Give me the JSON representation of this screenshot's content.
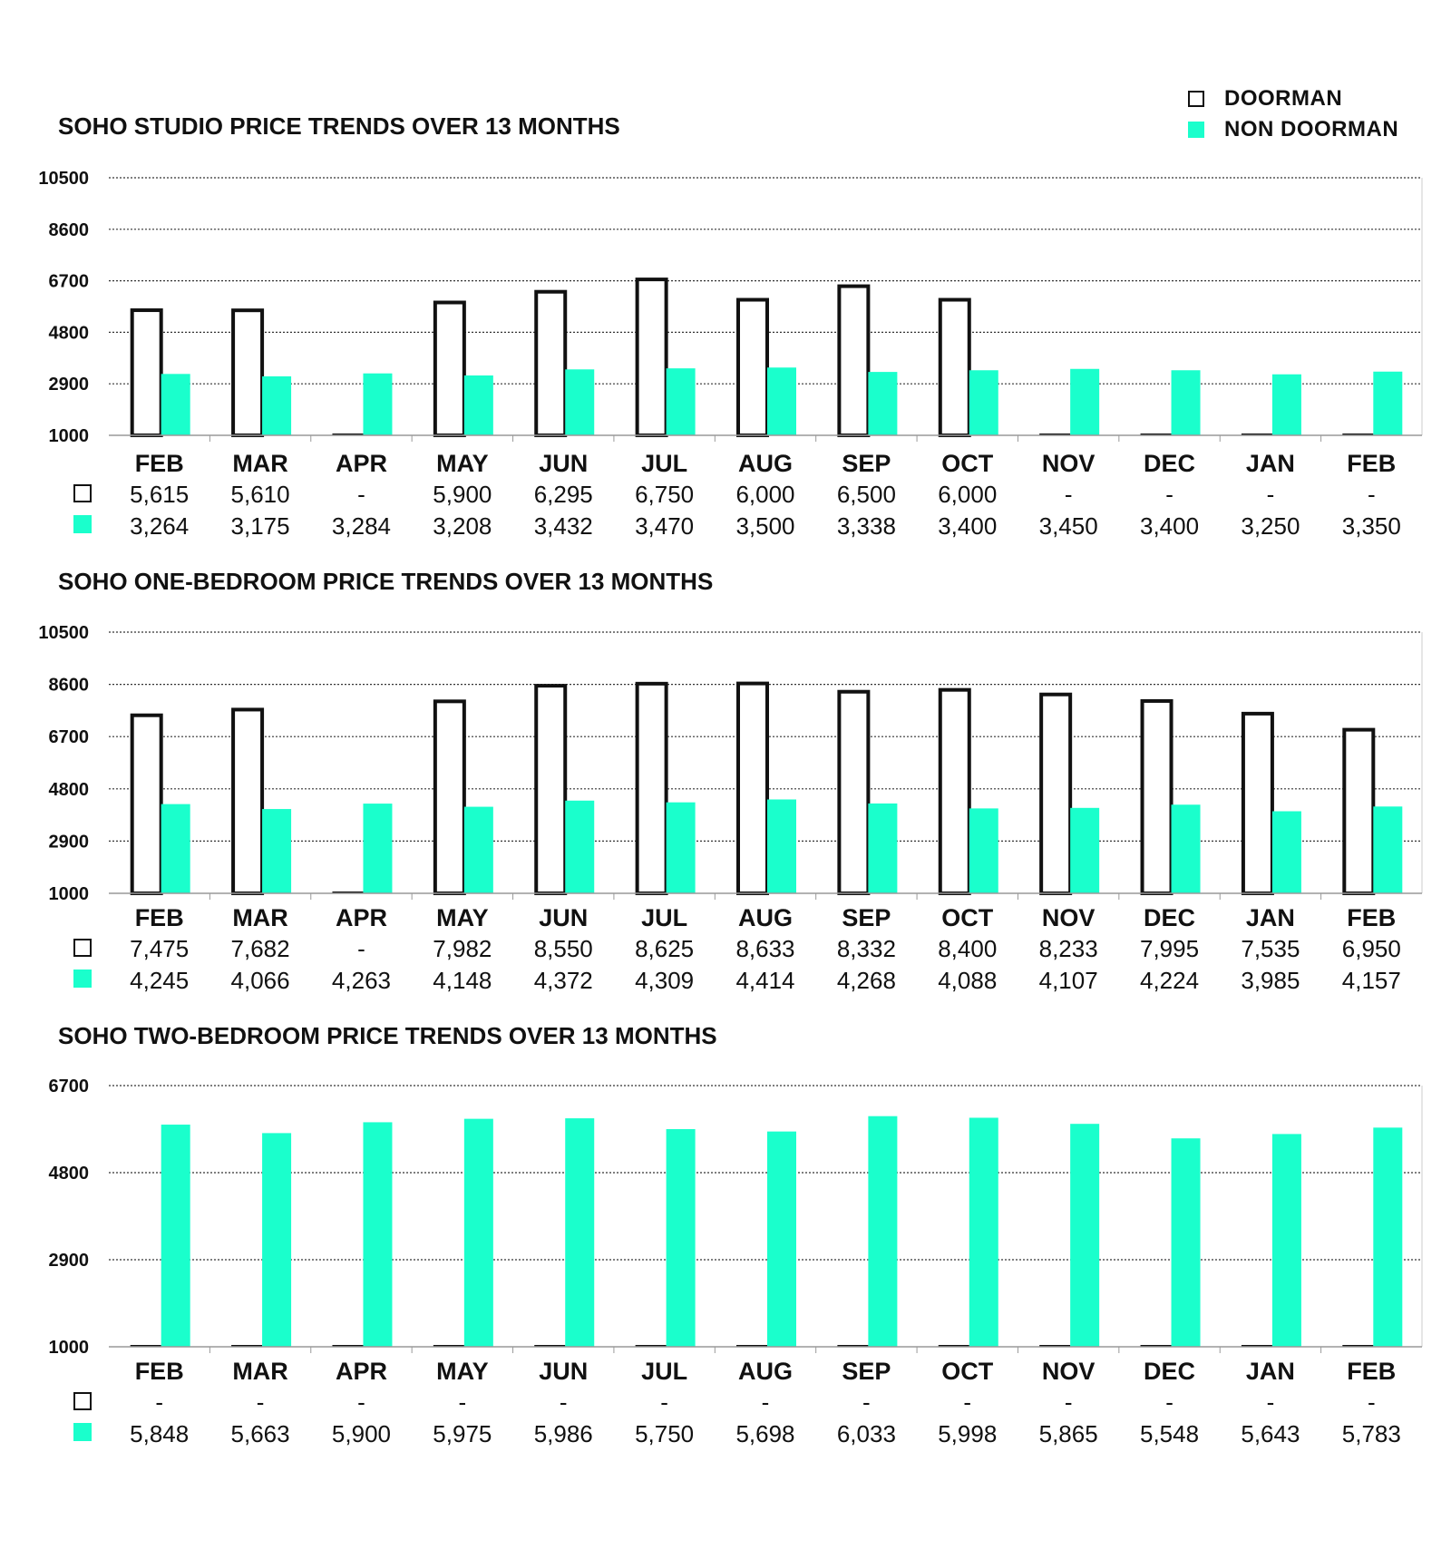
{
  "legend": {
    "doorman_label": "DOORMAN",
    "non_doorman_label": "NON DOORMAN",
    "doorman_icon": "outline-square-icon",
    "non_doorman_icon": "filled-square-icon"
  },
  "colors": {
    "doorman_fill": "#ffffff",
    "doorman_stroke": "#111111",
    "non_doorman_fill": "#1affcc",
    "grid": "#333333",
    "text": "#111111"
  },
  "chart_data": [
    {
      "type": "bar",
      "title": "SOHO STUDIO PRICE TRENDS OVER 13 MONTHS",
      "categories": [
        "FEB",
        "MAR",
        "APR",
        "MAY",
        "JUN",
        "JUL",
        "AUG",
        "SEP",
        "OCT",
        "NOV",
        "DEC",
        "JAN",
        "FEB"
      ],
      "ylim": [
        1000,
        10500
      ],
      "yticks": [
        1000,
        2900,
        4800,
        6700,
        8600,
        10500
      ],
      "series": [
        {
          "name": "DOORMAN",
          "values": [
            5615,
            5610,
            null,
            5900,
            6295,
            6750,
            6000,
            6500,
            6000,
            null,
            null,
            null,
            null
          ],
          "labels": [
            "5,615",
            "5,610",
            "-",
            "5,900",
            "6,295",
            "6,750",
            "6,000",
            "6,500",
            "6,000",
            "-",
            "-",
            "-",
            "-"
          ]
        },
        {
          "name": "NON DOORMAN",
          "values": [
            3264,
            3175,
            3284,
            3208,
            3432,
            3470,
            3500,
            3338,
            3400,
            3450,
            3400,
            3250,
            3350
          ],
          "labels": [
            "3,264",
            "3,175",
            "3,284",
            "3,208",
            "3,432",
            "3,470",
            "3,500",
            "3,338",
            "3,400",
            "3,450",
            "3,400",
            "3,250",
            "3,350"
          ]
        }
      ]
    },
    {
      "type": "bar",
      "title": "SOHO ONE-BEDROOM PRICE TRENDS OVER 13 MONTHS",
      "categories": [
        "FEB",
        "MAR",
        "APR",
        "MAY",
        "JUN",
        "JUL",
        "AUG",
        "SEP",
        "OCT",
        "NOV",
        "DEC",
        "JAN",
        "FEB"
      ],
      "ylim": [
        1000,
        10500
      ],
      "yticks": [
        1000,
        2900,
        4800,
        6700,
        8600,
        10500
      ],
      "series": [
        {
          "name": "DOORMAN",
          "values": [
            7475,
            7682,
            null,
            7982,
            8550,
            8625,
            8633,
            8332,
            8400,
            8233,
            7995,
            7535,
            6950
          ],
          "labels": [
            "7,475",
            "7,682",
            "-",
            "7,982",
            "8,550",
            "8,625",
            "8,633",
            "8,332",
            "8,400",
            "8,233",
            "7,995",
            "7,535",
            "6,950"
          ]
        },
        {
          "name": "NON DOORMAN",
          "values": [
            4245,
            4066,
            4263,
            4148,
            4372,
            4309,
            4414,
            4268,
            4088,
            4107,
            4224,
            3985,
            4157
          ],
          "labels": [
            "4,245",
            "4,066",
            "4,263",
            "4,148",
            "4,372",
            "4,309",
            "4,414",
            "4,268",
            "4,088",
            "4,107",
            "4,224",
            "3,985",
            "4,157"
          ]
        }
      ]
    },
    {
      "type": "bar",
      "title": "SOHO TWO-BEDROOM PRICE TRENDS OVER 13 MONTHS",
      "categories": [
        "FEB",
        "MAR",
        "APR",
        "MAY",
        "JUN",
        "JUL",
        "AUG",
        "SEP",
        "OCT",
        "NOV",
        "DEC",
        "JAN",
        "FEB"
      ],
      "ylim": [
        1000,
        6700
      ],
      "yticks": [
        1000,
        2900,
        4800,
        6700
      ],
      "series": [
        {
          "name": "DOORMAN",
          "values": [
            null,
            null,
            null,
            null,
            null,
            null,
            null,
            null,
            null,
            null,
            null,
            null,
            null
          ],
          "labels": [
            "-",
            "-",
            "-",
            "-",
            "-",
            "-",
            "-",
            "-",
            "-",
            "-",
            "-",
            "-",
            "-"
          ]
        },
        {
          "name": "NON DOORMAN",
          "values": [
            5848,
            5663,
            5900,
            5975,
            5986,
            5750,
            5698,
            6033,
            5998,
            5865,
            5548,
            5643,
            5783
          ],
          "labels": [
            "5,848",
            "5,663",
            "5,900",
            "5,975",
            "5,986",
            "5,750",
            "5,698",
            "6,033",
            "5,998",
            "5,865",
            "5,548",
            "5,643",
            "5,783"
          ]
        }
      ]
    }
  ]
}
